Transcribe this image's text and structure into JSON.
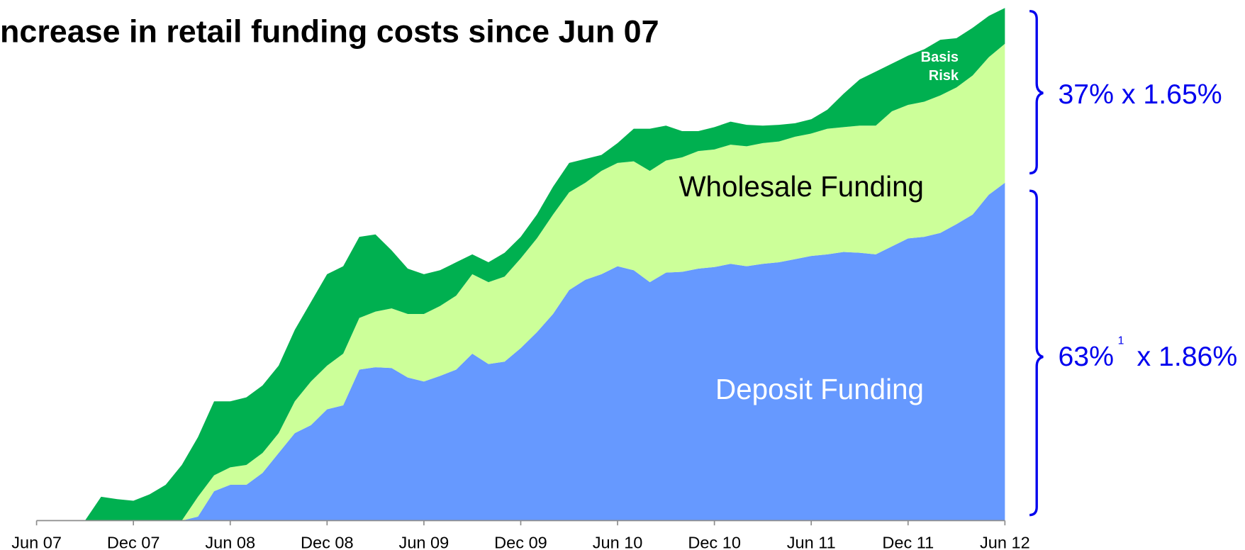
{
  "chart_data": {
    "type": "stacked_area",
    "title": "ncrease in retail funding costs since Jun 07",
    "categories": [
      "Jun 07",
      null,
      null,
      null,
      null,
      null,
      "Dec 07",
      null,
      null,
      null,
      null,
      null,
      "Jun 08",
      null,
      null,
      null,
      null,
      null,
      "Dec 08",
      null,
      null,
      null,
      null,
      null,
      "Jun 09",
      null,
      null,
      null,
      null,
      null,
      "Dec 09",
      null,
      null,
      null,
      null,
      null,
      "Jun 10",
      null,
      null,
      null,
      null,
      null,
      "Dec 10",
      null,
      null,
      null,
      null,
      null,
      "Jun 11",
      null,
      null,
      null,
      null,
      null,
      "Dec 11",
      null,
      null,
      null,
      null,
      null,
      "Jun 12"
    ],
    "series": [
      {
        "name": "Deposit Funding",
        "color": "#6699ff",
        "values": [
          0,
          0,
          0,
          0,
          0,
          0,
          0,
          0,
          0,
          0,
          1,
          7.4,
          9,
          9,
          12,
          17,
          22,
          24,
          28,
          29,
          38,
          38.6,
          38.4,
          36,
          35,
          36.4,
          38,
          42,
          39.4,
          40,
          43.4,
          47.4,
          52,
          58,
          60.6,
          62,
          64,
          63,
          60,
          62.4,
          62.6,
          63.4,
          63.8,
          64.6,
          64,
          64.6,
          65,
          65.8,
          66.6,
          67,
          67.6,
          67.4,
          67,
          69,
          71,
          71.4,
          72.4,
          74.6,
          77,
          82,
          85
        ]
      },
      {
        "name": "Wholesale Funding",
        "color": "#ccff99",
        "values": [
          0,
          0,
          0,
          0,
          0,
          0,
          0,
          0,
          0,
          0,
          5,
          4,
          4.4,
          5,
          5,
          5,
          8,
          11,
          11,
          13,
          13,
          14,
          15,
          16,
          17,
          17.6,
          18.6,
          20,
          20.6,
          21.4,
          22.6,
          23.6,
          25,
          24.6,
          24.4,
          26,
          26,
          27.4,
          28,
          28.2,
          28.8,
          29.6,
          29.6,
          30,
          30.2,
          30.4,
          30.4,
          30.8,
          30.8,
          31.6,
          31.4,
          32,
          32.4,
          34,
          33.6,
          34,
          34.6,
          34.4,
          35,
          34.6,
          35
        ]
      },
      {
        "name": "Basis Risk",
        "color": "#00b050",
        "values": [
          0,
          0,
          0,
          0,
          6,
          5.4,
          5,
          6.6,
          9,
          14,
          15,
          18.6,
          16.6,
          17,
          17,
          17,
          18,
          20,
          23,
          22,
          20.4,
          19.4,
          14.6,
          11.4,
          10,
          9,
          8.4,
          5,
          5,
          6,
          5.4,
          6,
          7,
          7.4,
          6,
          4,
          5,
          8.2,
          10.6,
          8.8,
          6.6,
          5,
          5.6,
          5.8,
          5.4,
          4.4,
          4.2,
          3.4,
          3.6,
          4.8,
          8.4,
          11.6,
          13.6,
          12,
          12.4,
          13.2,
          14,
          12.4,
          12,
          10.4,
          9
        ]
      }
    ],
    "ylim": [
      0,
      130
    ],
    "annotations": [
      "37% x 1.65%",
      "63%",
      "1",
      "x 1.86%"
    ]
  }
}
